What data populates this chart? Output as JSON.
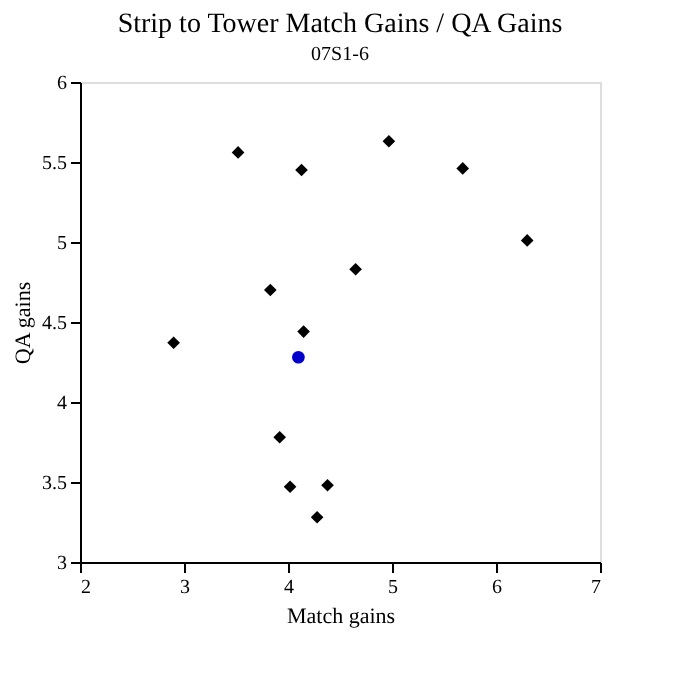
{
  "chart_data": {
    "type": "scatter",
    "title": "Strip to Tower Match Gains / QA Gains",
    "subtitle": "07S1-6",
    "xlabel": "Match gains",
    "ylabel": "QA gains",
    "xlim": [
      2,
      7
    ],
    "xticks": [
      2,
      3,
      4,
      5,
      6,
      7
    ],
    "ylim": [
      3,
      6
    ],
    "yticks": [
      3,
      3.5,
      4,
      4.5,
      5,
      5.5,
      6
    ],
    "grid": false,
    "legend": false,
    "marker": "diamond",
    "series": [
      {
        "color": "#000000",
        "x": [
          2.9,
          3.52,
          3.83,
          4.13,
          4.65,
          4.97,
          5.68,
          6.3,
          4.15,
          3.92,
          4.02,
          4.38,
          4.28
        ],
        "values": [
          4.37,
          5.56,
          4.7,
          5.45,
          4.83,
          5.63,
          5.46,
          5.01,
          4.44,
          3.78,
          3.47,
          3.48,
          3.28
        ]
      },
      {
        "color": "#0000cc",
        "marker": "circle",
        "x": [
          4.1
        ],
        "values": [
          4.28
        ]
      }
    ]
  }
}
